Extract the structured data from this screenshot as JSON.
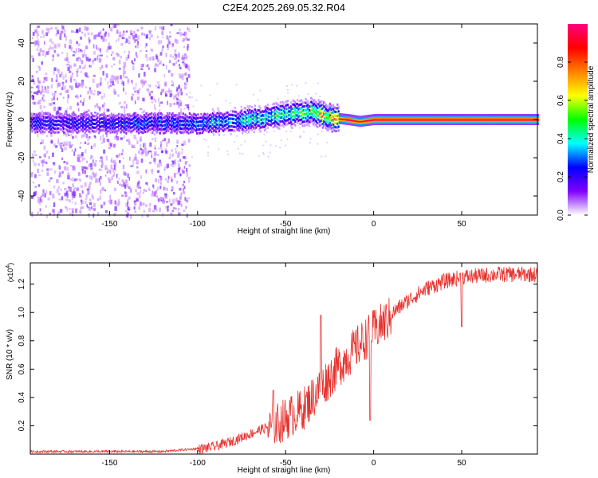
{
  "title": "C2E4.2025.269.05.32.R04",
  "chart_data": [
    {
      "type": "heatmap",
      "title": "C2E4.2025.269.05.32.R04",
      "xlabel": "Height of straight line (km)",
      "ylabel": "Frequency (Hz)",
      "xlim": [
        -195,
        93
      ],
      "ylim": [
        -50,
        50
      ],
      "xticks": [
        -150,
        -100,
        -50,
        0,
        50
      ],
      "yticks": [
        -40,
        -20,
        0,
        20,
        40
      ],
      "colorbar": {
        "label": "Normalized spectral amplitude",
        "range": [
          0,
          1
        ],
        "ticks": [
          0.0,
          0.2,
          0.4,
          0.6,
          0.8
        ],
        "colors": [
          "#ffffff",
          "#8000ff",
          "#0000ff",
          "#00ffff",
          "#00ff00",
          "#ffff00",
          "#ff8000",
          "#ff0000",
          "#ff0080"
        ]
      },
      "signal_track": {
        "x": [
          -195,
          -150,
          -100,
          -80,
          -60,
          -45,
          -35,
          -25,
          -15,
          -8,
          0,
          93
        ],
        "freq_hz": [
          -2,
          -2,
          -2,
          -1,
          1,
          3,
          4,
          1,
          0,
          -1,
          0,
          0
        ],
        "amplitude": [
          0.25,
          0.25,
          0.3,
          0.35,
          0.45,
          0.5,
          0.55,
          0.8,
          0.95,
          0.9,
          0.95,
          0.95
        ]
      },
      "noise_extent_x": [
        -195,
        -105
      ]
    },
    {
      "type": "line",
      "xlabel": "Height of straight line (km)",
      "ylabel": "SNR (10 * v/v)",
      "yscale_note_base": "(x10",
      "yscale_note_exp": "4",
      "yscale_note_close": ")",
      "xlim": [
        -195,
        93
      ],
      "ylim": [
        0,
        1.35
      ],
      "xticks": [
        -150,
        -100,
        -50,
        0,
        50
      ],
      "yticks": [
        0.2,
        0.4,
        0.6,
        0.8,
        1.0,
        1.2
      ],
      "color": "#e8302c",
      "envelope": {
        "x": [
          -195,
          -120,
          -100,
          -90,
          -80,
          -70,
          -60,
          -50,
          -40,
          -30,
          -20,
          -10,
          0,
          10,
          20,
          30,
          40,
          50,
          60,
          70,
          80,
          93
        ],
        "y": [
          0.02,
          0.02,
          0.04,
          0.06,
          0.1,
          0.15,
          0.2,
          0.28,
          0.35,
          0.5,
          0.65,
          0.78,
          0.9,
          1.0,
          1.1,
          1.18,
          1.23,
          1.26,
          1.27,
          1.28,
          1.28,
          1.28
        ]
      },
      "spikes": [
        {
          "x": -57,
          "y": 0.45
        },
        {
          "x": -30,
          "y": 0.98
        },
        {
          "x": -2,
          "y": 0.24
        },
        {
          "x": 50,
          "y": 0.9
        }
      ]
    }
  ]
}
